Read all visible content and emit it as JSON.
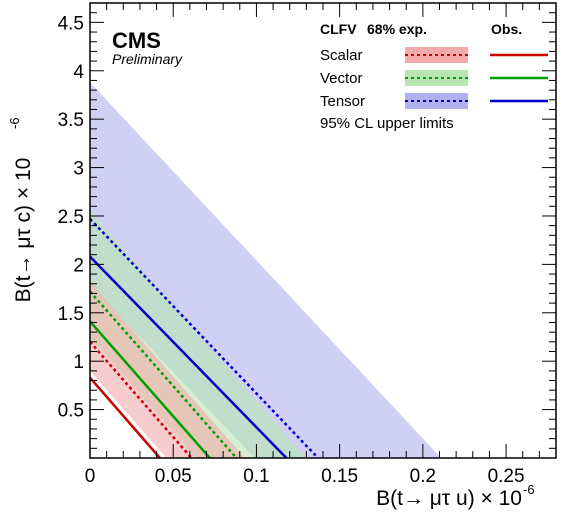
{
  "chart_data": {
    "type": "area",
    "xlabel": "B(t→ μτ u) × 10",
    "x_exponent": "-6",
    "ylabel": "B(t→ μτ c) × 10",
    "y_exponent": "-6",
    "xlim": [
      0,
      0.28
    ],
    "ylim": [
      0,
      4.7
    ],
    "xticks": [
      "0",
      "0.05",
      "0.1",
      "0.15",
      "0.2",
      "0.25"
    ],
    "yticks": [
      "0.5",
      "1",
      "1.5",
      "2",
      "2.5",
      "3",
      "3.5",
      "4",
      "4.5"
    ],
    "experiment": "CMS",
    "status": "Preliminary",
    "legend_headers": [
      "CLFV",
      "68% exp.",
      "Obs."
    ],
    "legend_note": "95% CL upper limits",
    "series": [
      {
        "name": "Scalar",
        "color": "#cc0000",
        "band_color": "#f2aaaa",
        "expected_intercepts": {
          "x": 0.061,
          "y": 1.2
        },
        "band_lower_intercepts": {
          "x": 0.046,
          "y": 0.9
        },
        "band_upper_intercepts": {
          "x": 0.093,
          "y": 1.82
        },
        "observed_intercepts": {
          "x": 0.042,
          "y": 0.83
        }
      },
      {
        "name": "Vector",
        "color": "#00a000",
        "band_color": "#b8e6b0",
        "expected_intercepts": {
          "x": 0.088,
          "y": 1.72
        },
        "band_lower_intercepts": {
          "x": 0.064,
          "y": 1.25
        },
        "band_upper_intercepts": {
          "x": 0.13,
          "y": 2.55
        },
        "observed_intercepts": {
          "x": 0.072,
          "y": 1.41
        }
      },
      {
        "name": "Tensor",
        "color": "#0000cc",
        "band_color": "#b0b0ee",
        "expected_intercepts": {
          "x": 0.137,
          "y": 2.47
        },
        "band_lower_intercepts": {
          "x": 0.099,
          "y": 1.79
        },
        "band_upper_intercepts": {
          "x": 0.211,
          "y": 3.88
        },
        "observed_intercepts": {
          "x": 0.118,
          "y": 2.08
        }
      }
    ]
  }
}
